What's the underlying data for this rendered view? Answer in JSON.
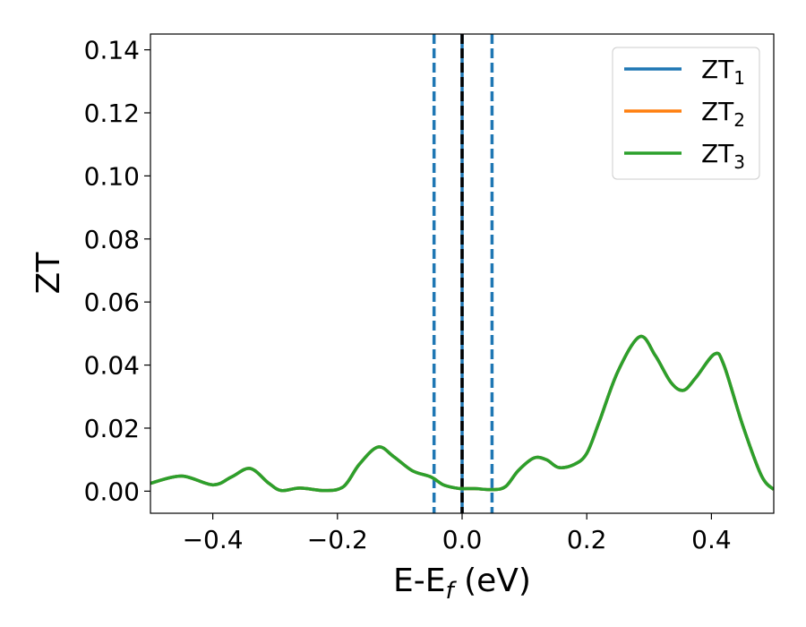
{
  "chart_data": {
    "type": "line",
    "xlabel": "E-E",
    "xlabel_sub": "f",
    "xlabel_unit": " (eV)",
    "ylabel": "ZT",
    "xlim": [
      -0.5,
      0.5
    ],
    "ylim": [
      -0.007,
      0.145
    ],
    "xticks": [
      -0.4,
      -0.2,
      0.0,
      0.2,
      0.4
    ],
    "xtick_labels": [
      "−0.4",
      "−0.2",
      "0.0",
      "0.2",
      "0.4"
    ],
    "yticks": [
      0.0,
      0.02,
      0.04,
      0.06,
      0.08,
      0.1,
      0.12,
      0.14
    ],
    "ytick_labels": [
      "0.00",
      "0.02",
      "0.04",
      "0.06",
      "0.08",
      "0.10",
      "0.12",
      "0.14"
    ],
    "grid": false,
    "legend_position": "top-right",
    "series": [
      {
        "name": "ZT",
        "sub": "1",
        "color": "#1f77b4",
        "x": [
          -0.5,
          -0.45,
          -0.4,
          -0.37,
          -0.34,
          -0.31,
          -0.29,
          -0.26,
          -0.22,
          -0.19,
          -0.165,
          -0.135,
          -0.11,
          -0.08,
          -0.05,
          -0.03,
          -0.01,
          0.0,
          0.02,
          0.05,
          0.07,
          0.09,
          0.115,
          0.135,
          0.155,
          0.18,
          0.2,
          0.22,
          0.25,
          0.285,
          0.31,
          0.335,
          0.355,
          0.375,
          0.405,
          0.42,
          0.45,
          0.48,
          0.5
        ],
        "y": [
          0.0025,
          0.0048,
          0.002,
          0.0045,
          0.0072,
          0.0025,
          0.0002,
          0.001,
          0.0002,
          0.0015,
          0.0085,
          0.014,
          0.011,
          0.0065,
          0.0045,
          0.002,
          0.001,
          0.0008,
          0.0008,
          0.0005,
          0.0015,
          0.0065,
          0.0105,
          0.01,
          0.0075,
          0.0085,
          0.012,
          0.022,
          0.038,
          0.049,
          0.043,
          0.0345,
          0.032,
          0.036,
          0.0435,
          0.04,
          0.021,
          0.005,
          0.0005
        ]
      },
      {
        "name": "ZT",
        "sub": "2",
        "color": "#ff7f0e",
        "x": [
          -0.5,
          -0.45,
          -0.4,
          -0.37,
          -0.34,
          -0.31,
          -0.29,
          -0.26,
          -0.22,
          -0.19,
          -0.165,
          -0.135,
          -0.11,
          -0.08,
          -0.05,
          -0.03,
          -0.01,
          0.0,
          0.02,
          0.05,
          0.07,
          0.09,
          0.115,
          0.135,
          0.155,
          0.18,
          0.2,
          0.22,
          0.25,
          0.285,
          0.31,
          0.335,
          0.355,
          0.375,
          0.405,
          0.42,
          0.45,
          0.48,
          0.5
        ],
        "y": [
          0.0025,
          0.0048,
          0.002,
          0.0045,
          0.0072,
          0.0025,
          0.0002,
          0.001,
          0.0002,
          0.0015,
          0.0085,
          0.014,
          0.011,
          0.0065,
          0.0045,
          0.002,
          0.001,
          0.0008,
          0.0008,
          0.0005,
          0.0015,
          0.0065,
          0.0105,
          0.01,
          0.0075,
          0.0085,
          0.012,
          0.022,
          0.038,
          0.049,
          0.043,
          0.0345,
          0.032,
          0.036,
          0.0435,
          0.04,
          0.021,
          0.005,
          0.0005
        ]
      },
      {
        "name": "ZT",
        "sub": "3",
        "color": "#2ca02c",
        "x": [
          -0.5,
          -0.45,
          -0.4,
          -0.37,
          -0.34,
          -0.31,
          -0.29,
          -0.26,
          -0.22,
          -0.19,
          -0.165,
          -0.135,
          -0.11,
          -0.08,
          -0.05,
          -0.03,
          -0.01,
          0.0,
          0.02,
          0.05,
          0.07,
          0.09,
          0.115,
          0.135,
          0.155,
          0.18,
          0.2,
          0.22,
          0.25,
          0.285,
          0.31,
          0.335,
          0.355,
          0.375,
          0.405,
          0.42,
          0.45,
          0.48,
          0.5
        ],
        "y": [
          0.0025,
          0.0048,
          0.002,
          0.0045,
          0.0072,
          0.0025,
          0.0002,
          0.001,
          0.0002,
          0.0015,
          0.0085,
          0.014,
          0.011,
          0.0065,
          0.0045,
          0.002,
          0.001,
          0.0008,
          0.0008,
          0.0005,
          0.0015,
          0.0065,
          0.0105,
          0.01,
          0.0075,
          0.0085,
          0.012,
          0.022,
          0.038,
          0.049,
          0.043,
          0.0345,
          0.032,
          0.036,
          0.0435,
          0.04,
          0.021,
          0.005,
          0.0005
        ]
      }
    ],
    "vlines": [
      {
        "x": -0.045,
        "color": "#1f77b4",
        "style": "dashed"
      },
      {
        "x": 0.0,
        "color": "#1f77b4",
        "style": "solid"
      },
      {
        "x": 0.0,
        "color": "#000000",
        "style": "dashed"
      },
      {
        "x": 0.048,
        "color": "#1f77b4",
        "style": "dashed"
      }
    ]
  }
}
